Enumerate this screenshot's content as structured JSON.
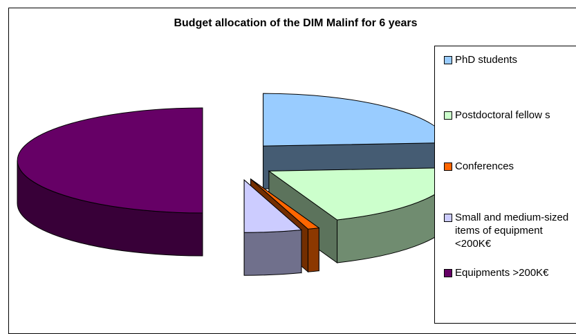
{
  "chart_data": {
    "type": "pie",
    "title": "Budget allocation of the DIM Malinf for 6 years",
    "categories": [
      "PhD students",
      "Postdoctoral fellow s",
      "Conferences",
      "Small and medium-sized items of equipment <200K€",
      "Equipments >200K€"
    ],
    "values": [
      24,
      20,
      1,
      5,
      50
    ],
    "colors": [
      "#99ccff",
      "#ccffcc",
      "#ff6600",
      "#ccccff",
      "#660066"
    ],
    "exploded": true,
    "three_d": true,
    "legend_position": "right"
  }
}
